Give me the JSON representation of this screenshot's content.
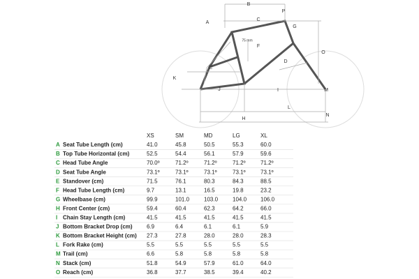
{
  "diagram": {
    "labels": [
      "A",
      "B",
      "C",
      "P",
      "G",
      "F",
      "O",
      "75 mm",
      "E",
      "K",
      "D",
      "J",
      "I",
      "M",
      "L",
      "H",
      "N"
    ]
  },
  "table": {
    "sizes": [
      "XS",
      "SM",
      "MD",
      "LG",
      "XL"
    ],
    "rows": [
      {
        "letter": "A",
        "name": "Seat Tube Length (cm)",
        "values": [
          "41.0",
          "45.8",
          "50.5",
          "55.3",
          "60.0"
        ]
      },
      {
        "letter": "B",
        "name": "Top Tube Horizontal (cm)",
        "values": [
          "52.5",
          "54.4",
          "56.1",
          "57.9",
          "59.6"
        ]
      },
      {
        "letter": "C",
        "name": "Head Tube Angle",
        "values": [
          "70.0º",
          "71.2º",
          "71.2º",
          "71.2º",
          "71.2º"
        ]
      },
      {
        "letter": "D",
        "name": "Seat Tube Angle",
        "values": [
          "73.1º",
          "73.1º",
          "73.1º",
          "73.1º",
          "73.1º"
        ]
      },
      {
        "letter": "E",
        "name": "Standover (cm)",
        "values": [
          "71.5",
          "76.1",
          "80.3",
          "84.3",
          "88.5"
        ]
      },
      {
        "letter": "F",
        "name": "Head Tube Length (cm)",
        "values": [
          "9.7",
          "13.1",
          "16.5",
          "19.8",
          "23.2"
        ]
      },
      {
        "letter": "G",
        "name": "Wheelbase (cm)",
        "values": [
          "99.9",
          "101.0",
          "103.0",
          "104.0",
          "106.0"
        ]
      },
      {
        "letter": "H",
        "name": "Front Center (cm)",
        "values": [
          "59.4",
          "60.4",
          "62.3",
          "64.2",
          "66.0"
        ]
      },
      {
        "letter": "I",
        "name": "Chain Stay Length (cm)",
        "values": [
          "41.5",
          "41.5",
          "41.5",
          "41.5",
          "41.5"
        ]
      },
      {
        "letter": "J",
        "name": "Bottom Bracket Drop (cm)",
        "values": [
          "6.9",
          "6.4",
          "6.1",
          "6.1",
          "5.9"
        ]
      },
      {
        "letter": "K",
        "name": "Bottom Bracket Height (cm)",
        "values": [
          "27.3",
          "27.8",
          "28.0",
          "28.0",
          "28.3"
        ]
      },
      {
        "letter": "L",
        "name": "Fork Rake (cm)",
        "values": [
          "5.5",
          "5.5",
          "5.5",
          "5.5",
          "5.5"
        ]
      },
      {
        "letter": "M",
        "name": "Trail (cm)",
        "values": [
          "6.6",
          "5.8",
          "5.8",
          "5.8",
          "5.8"
        ]
      },
      {
        "letter": "N",
        "name": "Stack (cm)",
        "values": [
          "51.8",
          "54.9",
          "57.9",
          "61.0",
          "64.0"
        ]
      },
      {
        "letter": "O",
        "name": "Reach (cm)",
        "values": [
          "36.8",
          "37.7",
          "38.5",
          "39.4",
          "40.2"
        ]
      }
    ]
  }
}
